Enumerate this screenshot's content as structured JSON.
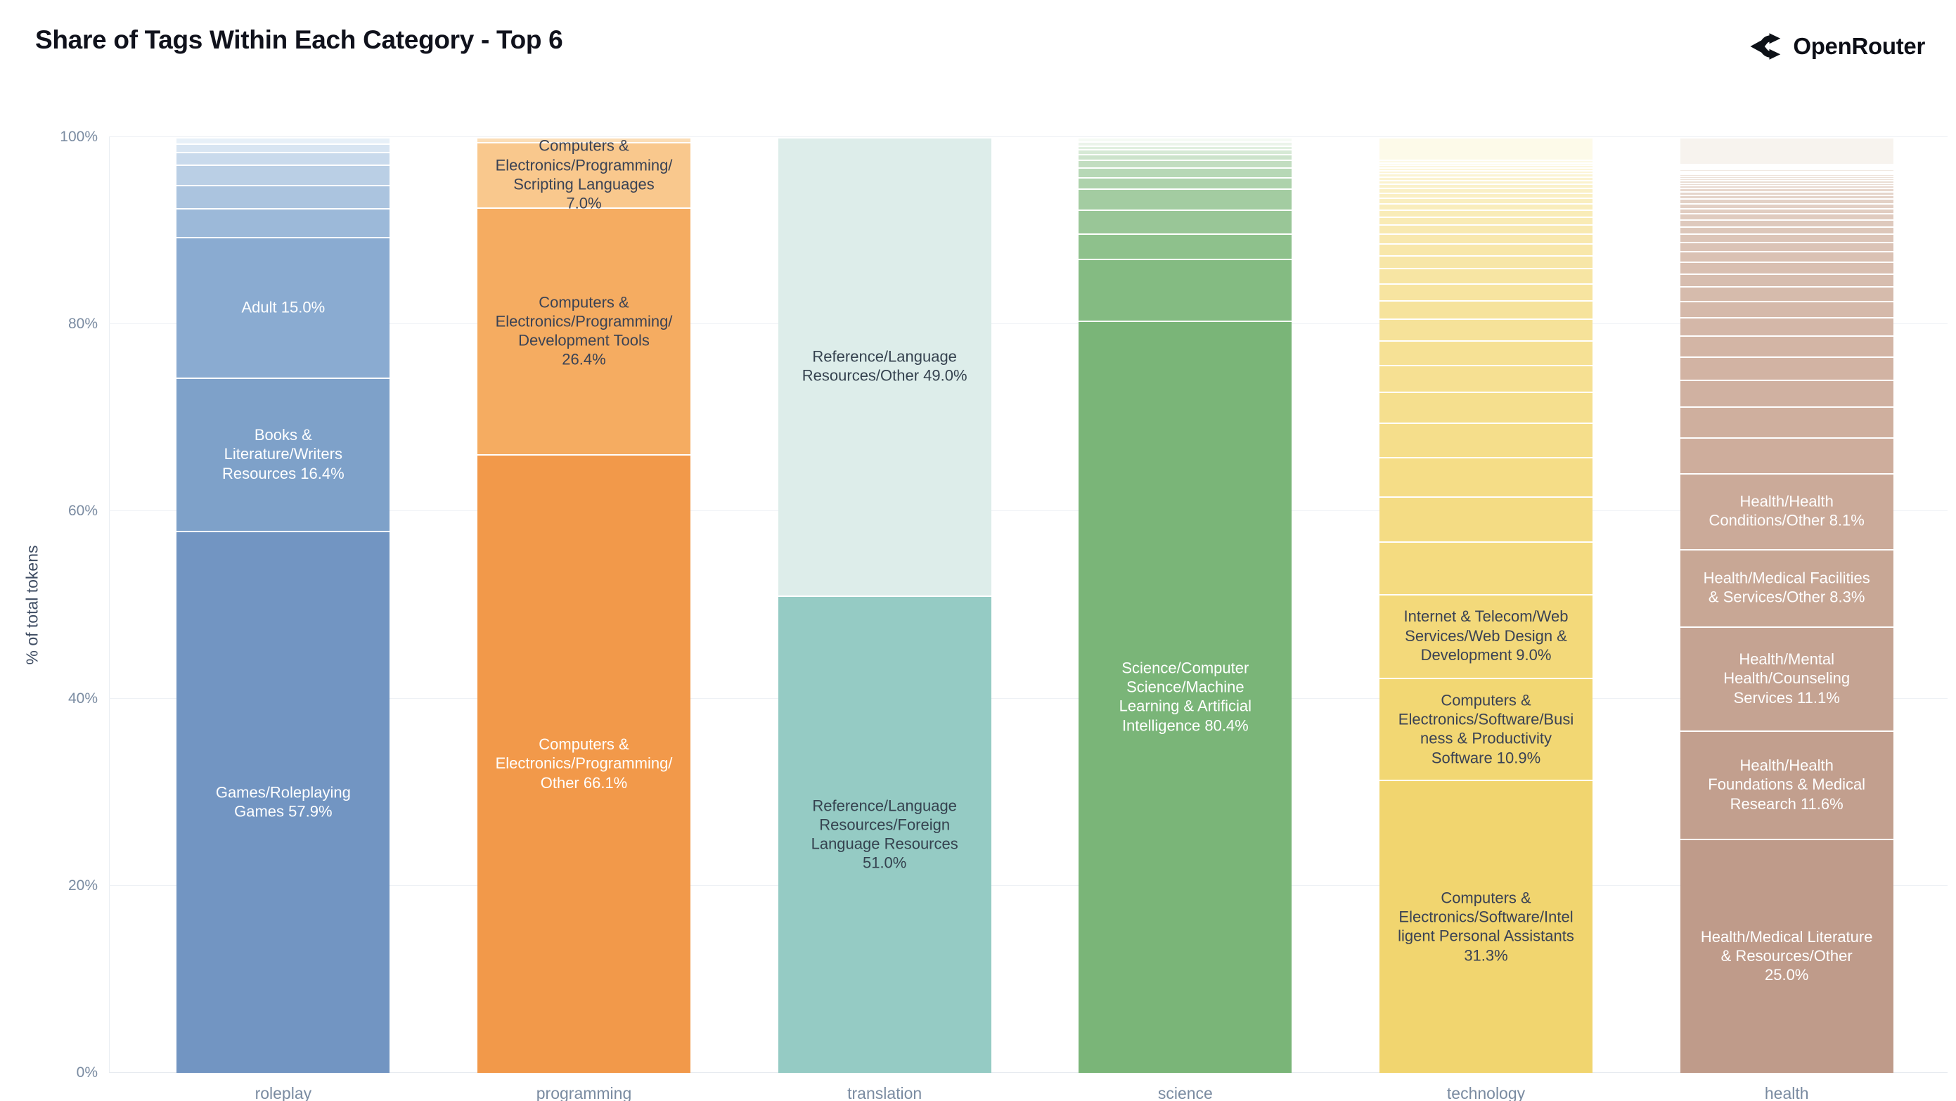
{
  "header": {
    "title": "Share of Tags Within Each Category - Top 6",
    "brand": "OpenRouter",
    "logo_icon": "openrouter-route-icon"
  },
  "chart_data": {
    "type": "bar",
    "variant": "stacked-100-percent",
    "title": "Share of Tags Within Each Category - Top 6",
    "xlabel": "",
    "ylabel": "% of total tokens",
    "ylim": [
      0,
      100
    ],
    "yticks": [
      "0%",
      "20%",
      "40%",
      "60%",
      "80%",
      "100%"
    ],
    "grid": true,
    "legend": false,
    "categories": [
      "roleplay",
      "programming",
      "translation",
      "science",
      "technology",
      "health"
    ],
    "label_dark_color": "#3a4254",
    "label_light_color": "#ffffff",
    "bars": [
      {
        "category": "roleplay",
        "segments": [
          {
            "label": "Games/Roleplaying Games",
            "value": 57.9,
            "color": "#7295c2",
            "text_color": "#ffffff"
          },
          {
            "label": "Books & Literature/Writers Resources",
            "value": 16.4,
            "color": "#7ea1c9",
            "text_color": "#ffffff"
          },
          {
            "label": "Adult",
            "value": 15.0,
            "color": "#8aabd1",
            "text_color": "#ffffff"
          }
        ],
        "others": {
          "values": [
            3.1,
            2.5,
            2.2,
            1.3,
            0.9,
            0.7
          ],
          "color_from": "#9cb9d9",
          "color_to": "#e7f0f8"
        }
      },
      {
        "category": "programming",
        "segments": [
          {
            "label": "Computers & Electronics/Programming/Other",
            "value": 66.1,
            "color": "#f2994a",
            "text_color": "#ffffff"
          },
          {
            "label": "Computers & Electronics/Programming/Development Tools",
            "value": 26.4,
            "color": "#f5ac61",
            "text_color": "#3a4254"
          },
          {
            "label": "Computers & Electronics/Programming/Scripting Languages",
            "value": 7.0,
            "color": "#f9c88d",
            "text_color": "#3a4254"
          }
        ],
        "others": {
          "values": [
            0.5
          ],
          "color_from": "#fbddb6",
          "color_to": "#fbddb6"
        }
      },
      {
        "category": "translation",
        "segments": [
          {
            "label": "Reference/Language Resources/Foreign Language Resources",
            "value": 51.0,
            "color": "#95cbc4",
            "text_color": "#35424f"
          },
          {
            "label": "Reference/Language Resources/Other",
            "value": 49.0,
            "color": "#ddedea",
            "text_color": "#35424f"
          }
        ],
        "others": {
          "values": [],
          "color_from": "#ddedea",
          "color_to": "#ddedea"
        }
      },
      {
        "category": "science",
        "segments": [
          {
            "label": "Science/Computer Science/Machine Learning & Artificial Intelligence",
            "value": 80.4,
            "color": "#7ab578",
            "text_color": "#ffffff"
          }
        ],
        "others": {
          "values": [
            6.6,
            2.7,
            2.6,
            2.2,
            1.2,
            1.1,
            0.8,
            0.6,
            0.5,
            0.4,
            0.45,
            0.45
          ],
          "color_from": "#84bb82",
          "color_to": "#f5faf4"
        }
      },
      {
        "category": "technology",
        "segments": [
          {
            "label": "Computers & Electronics/Software/Intelligent Personal Assistants",
            "value": 31.3,
            "color": "#f1d56f",
            "text_color": "#3a4254"
          },
          {
            "label": "Computers & Electronics/Software/Business & Productivity Software",
            "value": 10.9,
            "color": "#f2d773",
            "text_color": "#3a4254"
          },
          {
            "label": "Internet & Telecom/Web Services/Web Design & Development",
            "value": 9.0,
            "color": "#f3d97a",
            "text_color": "#3a4254"
          }
        ],
        "others": {
          "values": [
            5.6,
            4.8,
            4.2,
            3.7,
            3.3,
            2.9,
            2.6,
            2.3,
            2.0,
            1.8,
            1.6,
            1.4,
            1.25,
            1.1,
            0.95,
            0.85,
            0.75,
            0.65,
            0.6,
            0.55,
            0.5,
            0.45,
            0.4,
            0.38,
            0.35,
            0.32,
            0.3,
            0.28,
            0.26,
            0.25,
            2.41
          ],
          "color_from": "#f4db80",
          "color_to": "#fdfae9"
        }
      },
      {
        "category": "health",
        "segments": [
          {
            "label": "Health/Medical Literature & Resources/Other",
            "value": 25.0,
            "color": "#bf9b8a",
            "text_color": "#ffffff"
          },
          {
            "label": "Health/Health Foundations & Medical Research",
            "value": 11.6,
            "color": "#c29f8e",
            "text_color": "#ffffff"
          },
          {
            "label": "Health/Mental Health/Counseling Services",
            "value": 11.1,
            "color": "#c5a392",
            "text_color": "#ffffff"
          },
          {
            "label": "Health/Medical Facilities & Services/Other",
            "value": 8.3,
            "color": "#c8a795",
            "text_color": "#ffffff"
          },
          {
            "label": "Health/Health Conditions/Other",
            "value": 8.1,
            "color": "#cbaa99",
            "text_color": "#ffffff"
          }
        ],
        "others": {
          "values": [
            3.8,
            3.3,
            2.9,
            2.5,
            2.2,
            1.95,
            1.75,
            1.55,
            1.4,
            1.25,
            1.1,
            1.0,
            0.9,
            0.8,
            0.72,
            0.65,
            0.58,
            0.52,
            0.47,
            0.42,
            0.38,
            0.34,
            0.3,
            0.28,
            0.26,
            0.24,
            0.22,
            0.2,
            0.19,
            0.18,
            0.17,
            0.16,
            0.15,
            0.14,
            0.13,
            2.8
          ],
          "color_from": "#cead9c",
          "color_to": "#f7f3ee"
        }
      }
    ]
  }
}
